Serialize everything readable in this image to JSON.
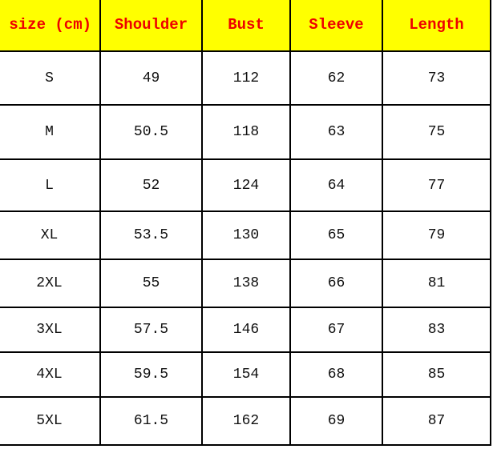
{
  "colors": {
    "header_bg": "#ffff00",
    "header_text": "#ee0000"
  },
  "headers": [
    "size (cm)",
    "Shoulder",
    "Bust",
    "Sleeve",
    "Length"
  ],
  "rows": [
    [
      "S",
      "49",
      "112",
      "62",
      "73"
    ],
    [
      "M",
      "50.5",
      "118",
      "63",
      "75"
    ],
    [
      "L",
      "52",
      "124",
      "64",
      "77"
    ],
    [
      "XL",
      "53.5",
      "130",
      "65",
      "79"
    ],
    [
      "2XL",
      "55",
      "138",
      "66",
      "81"
    ],
    [
      "3XL",
      "57.5",
      "146",
      "67",
      "83"
    ],
    [
      "4XL",
      "59.5",
      "154",
      "68",
      "85"
    ],
    [
      "5XL",
      "61.5",
      "162",
      "69",
      "87"
    ]
  ]
}
